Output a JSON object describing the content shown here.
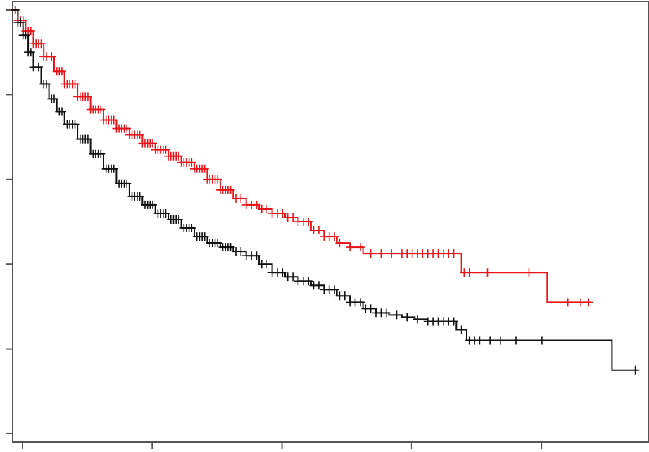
{
  "chart_data": {
    "type": "line",
    "title": "",
    "xlabel": "",
    "ylabel": "",
    "xlim": [
      0,
      245
    ],
    "ylim": [
      -0.02,
      1.02
    ],
    "x_ticks": [
      0,
      50,
      100,
      150,
      200
    ],
    "y_ticks": [
      0,
      0.2,
      0.4,
      0.6,
      0.8,
      1.0
    ],
    "grid": false,
    "legend": "none",
    "series": [
      {
        "color": "#e8141b",
        "step_points": [
          [
            0,
            1.0
          ],
          [
            2,
            0.975
          ],
          [
            5,
            0.95
          ],
          [
            8,
            0.92
          ],
          [
            12,
            0.89
          ],
          [
            16,
            0.855
          ],
          [
            20,
            0.825
          ],
          [
            25,
            0.795
          ],
          [
            30,
            0.765
          ],
          [
            35,
            0.74
          ],
          [
            40,
            0.72
          ],
          [
            45,
            0.705
          ],
          [
            50,
            0.685
          ],
          [
            55,
            0.67
          ],
          [
            60,
            0.655
          ],
          [
            65,
            0.64
          ],
          [
            70,
            0.625
          ],
          [
            75,
            0.6
          ],
          [
            80,
            0.575
          ],
          [
            85,
            0.555
          ],
          [
            90,
            0.54
          ],
          [
            95,
            0.53
          ],
          [
            100,
            0.52
          ],
          [
            105,
            0.51
          ],
          [
            110,
            0.5
          ],
          [
            115,
            0.48
          ],
          [
            120,
            0.465
          ],
          [
            125,
            0.45
          ],
          [
            130,
            0.44
          ],
          [
            135,
            0.425
          ],
          [
            140,
            0.425
          ],
          [
            150,
            0.425
          ],
          [
            160,
            0.425
          ],
          [
            172,
            0.425
          ],
          [
            173,
            0.38
          ],
          [
            180,
            0.38
          ],
          [
            200,
            0.38
          ],
          [
            205,
            0.38
          ],
          [
            206,
            0.31
          ],
          [
            223,
            0.31
          ]
        ],
        "censor_x": [
          1,
          2,
          3,
          4,
          5,
          6,
          7,
          8,
          9,
          10,
          11,
          12,
          13,
          15,
          17,
          18,
          19,
          20,
          21,
          22,
          23,
          24,
          25,
          26,
          27,
          28,
          29,
          30,
          31,
          32,
          33,
          34,
          35,
          36,
          37,
          38,
          39,
          40,
          41,
          42,
          43,
          44,
          45,
          46,
          47,
          48,
          49,
          50,
          51,
          52,
          53,
          54,
          55,
          56,
          57,
          58,
          59,
          60,
          61,
          62,
          63,
          64,
          65,
          66,
          67,
          68,
          69,
          70,
          71,
          72,
          73,
          74,
          75,
          76,
          77,
          78,
          79,
          80,
          81,
          82,
          83,
          84,
          86,
          88,
          90,
          92,
          94,
          96,
          98,
          100,
          102,
          104,
          106,
          108,
          110,
          112,
          114,
          116,
          118,
          120,
          122,
          124,
          126,
          130,
          134,
          138,
          142,
          146,
          150,
          152,
          154,
          156,
          158,
          160,
          162,
          164,
          166,
          168,
          170,
          174,
          176,
          183,
          199,
          214,
          219,
          222
        ]
      },
      {
        "color": "#111111",
        "step_points": [
          [
            0,
            1.0
          ],
          [
            2,
            0.97
          ],
          [
            4,
            0.94
          ],
          [
            6,
            0.9
          ],
          [
            8,
            0.865
          ],
          [
            11,
            0.825
          ],
          [
            14,
            0.79
          ],
          [
            17,
            0.76
          ],
          [
            20,
            0.73
          ],
          [
            25,
            0.695
          ],
          [
            30,
            0.66
          ],
          [
            35,
            0.625
          ],
          [
            40,
            0.59
          ],
          [
            45,
            0.56
          ],
          [
            50,
            0.54
          ],
          [
            55,
            0.52
          ],
          [
            60,
            0.505
          ],
          [
            65,
            0.485
          ],
          [
            70,
            0.465
          ],
          [
            75,
            0.45
          ],
          [
            80,
            0.44
          ],
          [
            85,
            0.43
          ],
          [
            90,
            0.42
          ],
          [
            95,
            0.4
          ],
          [
            100,
            0.38
          ],
          [
            105,
            0.37
          ],
          [
            110,
            0.36
          ],
          [
            115,
            0.35
          ],
          [
            120,
            0.34
          ],
          [
            125,
            0.325
          ],
          [
            130,
            0.31
          ],
          [
            135,
            0.295
          ],
          [
            140,
            0.285
          ],
          [
            145,
            0.28
          ],
          [
            150,
            0.275
          ],
          [
            155,
            0.27
          ],
          [
            160,
            0.265
          ],
          [
            170,
            0.265
          ],
          [
            171,
            0.245
          ],
          [
            174,
            0.245
          ],
          [
            175,
            0.22
          ],
          [
            180,
            0.22
          ],
          [
            200,
            0.22
          ],
          [
            230,
            0.22
          ],
          [
            231,
            0.15
          ],
          [
            241,
            0.15
          ]
        ],
        "censor_x": [
          1,
          2,
          3,
          4,
          5,
          6,
          7,
          8,
          10,
          12,
          13,
          15,
          16,
          18,
          19,
          21,
          22,
          23,
          24,
          26,
          27,
          28,
          29,
          31,
          32,
          33,
          34,
          36,
          37,
          38,
          39,
          41,
          42,
          43,
          44,
          46,
          47,
          48,
          49,
          51,
          52,
          53,
          54,
          56,
          57,
          58,
          59,
          61,
          62,
          63,
          64,
          66,
          67,
          68,
          69,
          71,
          72,
          73,
          74,
          76,
          77,
          78,
          79,
          81,
          82,
          83,
          84,
          86,
          88,
          90,
          92,
          94,
          96,
          98,
          100,
          102,
          104,
          106,
          108,
          110,
          112,
          114,
          116,
          118,
          120,
          122,
          124,
          126,
          128,
          130,
          132,
          134,
          136,
          138,
          140,
          142,
          144,
          148,
          152,
          156,
          160,
          162,
          164,
          166,
          168,
          170,
          173,
          176,
          178,
          180,
          184,
          188,
          194,
          204,
          240
        ]
      }
    ]
  }
}
